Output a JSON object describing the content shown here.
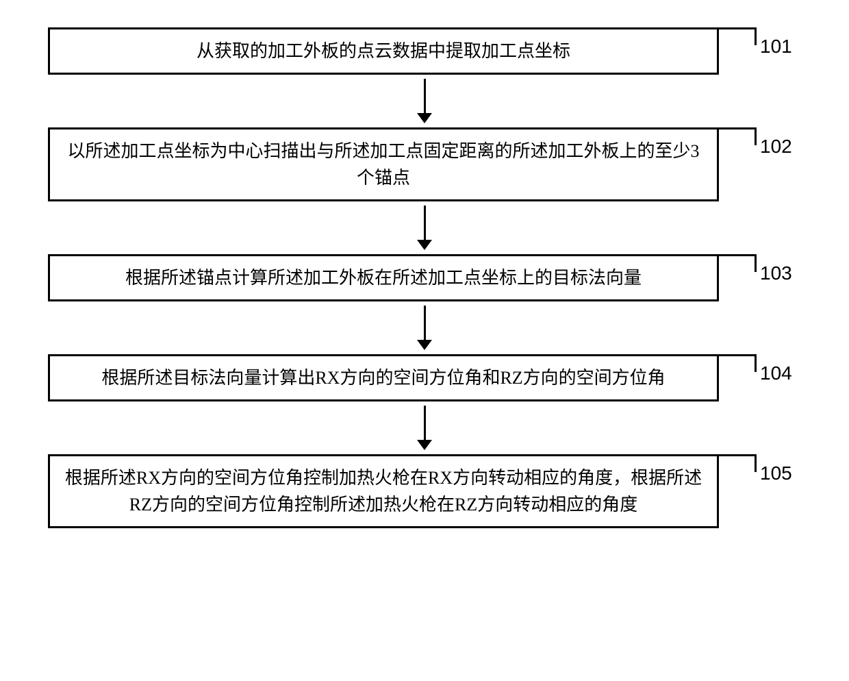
{
  "flowchart": {
    "type": "flowchart",
    "background_color": "#ffffff",
    "box_border_color": "#000000",
    "box_border_width": 3,
    "box_background": "#ffffff",
    "text_color": "#000000",
    "font_family": "SimSun",
    "font_size": 26,
    "label_font_size": 28,
    "arrow_color": "#000000",
    "arrow_line_width": 3,
    "arrow_line_length": 50,
    "arrow_head_size": 11,
    "steps": [
      {
        "id": "101",
        "text": "从获取的加工外板的点云数据中提取加工点坐标"
      },
      {
        "id": "102",
        "text": "以所述加工点坐标为中心扫描出与所述加工点固定距离的所述加工外板上的至少3个锚点"
      },
      {
        "id": "103",
        "text": "根据所述锚点计算所述加工外板在所述加工点坐标上的目标法向量"
      },
      {
        "id": "104",
        "text": "根据所述目标法向量计算出RX方向的空间方位角和RZ方向的空间方位角"
      },
      {
        "id": "105",
        "text": "根据所述RX方向的空间方位角控制加热火枪在RX方向转动相应的角度，根据所述RZ方向的空间方位角控制所述加热火枪在RZ方向转动相应的角度"
      }
    ]
  }
}
